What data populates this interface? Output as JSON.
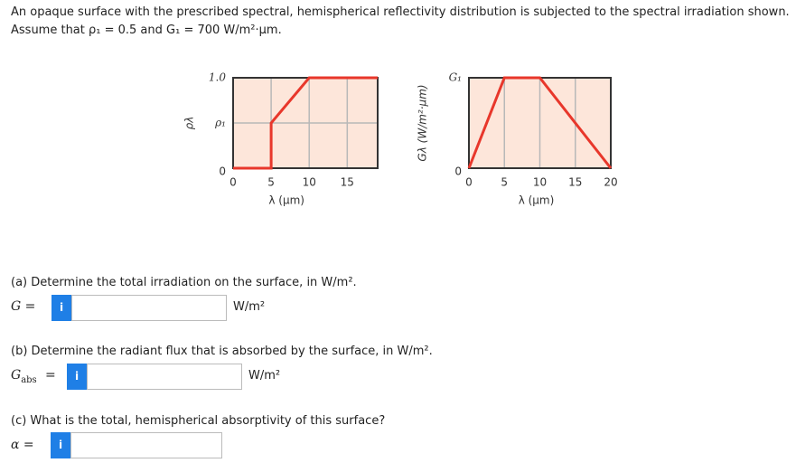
{
  "intro": {
    "line1": "An opaque surface with the prescribed spectral, hemispherical reflectivity distribution is subjected to the spectral irradiation shown.",
    "line2": "Assume that ρ₁ = 0.5 and G₁ = 700 W/m²·μm."
  },
  "chart_data": [
    {
      "type": "line",
      "ylabel": "ρλ",
      "xlabel": "λ (μm)",
      "x": [
        0,
        5,
        5,
        10,
        19
      ],
      "values": [
        0,
        0,
        0.5,
        1,
        1
      ],
      "color": "#e8372b",
      "xlim": [
        0,
        19
      ],
      "ylim": [
        0,
        1
      ],
      "xticks": [
        0,
        5,
        10,
        15
      ],
      "yticks": [
        0,
        {
          "value": 0.5,
          "label": "ρ₁"
        },
        {
          "value": 1,
          "label": "1.0"
        }
      ],
      "grid": true
    },
    {
      "type": "line",
      "ylabel": "Gλ (W/m²·μm)",
      "xlabel": "λ (μm)",
      "x": [
        0,
        5,
        10,
        20
      ],
      "values": [
        0,
        700,
        700,
        0
      ],
      "color": "#e8372b",
      "xlim": [
        0,
        20
      ],
      "ylim": [
        0,
        700
      ],
      "xticks": [
        0,
        5,
        10,
        15,
        20
      ],
      "yticks": [
        0,
        {
          "value": 700,
          "label": "G₁"
        }
      ],
      "grid": true
    }
  ],
  "questions": [
    {
      "text": "(a) Determine the total irradiation on the surface, in W/m².",
      "symbol": "G =",
      "info": "i",
      "unit": "W/m²"
    },
    {
      "text": "(b) Determine the radiant flux that is absorbed by the surface, in W/m².",
      "symbol": "G",
      "subscript": "abs",
      "equals": "=",
      "info": "i",
      "unit": "W/m²"
    },
    {
      "text": "(c) What is the total, hemispherical absorptivity of this surface?",
      "symbol": "α =",
      "info": "i"
    }
  ]
}
